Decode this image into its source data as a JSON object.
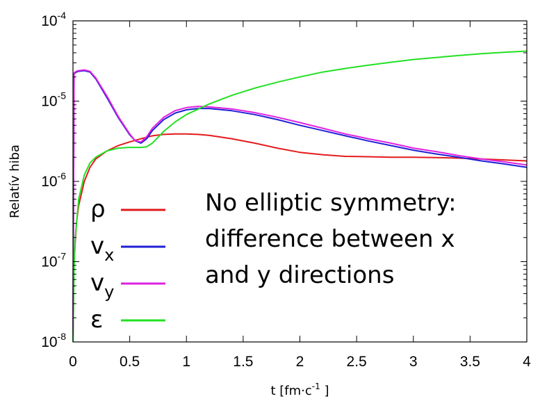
{
  "chart_data": {
    "type": "line",
    "title": "",
    "xlabel": {
      "text": "t [fm·c",
      "sup": "-1",
      "suffix": " ]"
    },
    "ylabel": "Relatív hiba",
    "xlim": [
      0,
      4
    ],
    "ylim": [
      1e-08,
      0.0001
    ],
    "yscale": "log",
    "grid": false,
    "legend_position": "left",
    "x_ticks": [
      {
        "value": 0,
        "label": "0"
      },
      {
        "value": 0.5,
        "label": "0.5"
      },
      {
        "value": 1,
        "label": "1"
      },
      {
        "value": 1.5,
        "label": "1.5"
      },
      {
        "value": 2,
        "label": "2"
      },
      {
        "value": 2.5,
        "label": "2.5"
      },
      {
        "value": 3,
        "label": "3"
      },
      {
        "value": 3.5,
        "label": "3.5"
      },
      {
        "value": 4,
        "label": "4"
      }
    ],
    "y_ticks": [
      {
        "value": 1e-08,
        "base": "10",
        "exp": "-8"
      },
      {
        "value": 1e-07,
        "base": "10",
        "exp": "-7"
      },
      {
        "value": 1e-06,
        "base": "10",
        "exp": "-6"
      },
      {
        "value": 1e-05,
        "base": "10",
        "exp": "-5"
      },
      {
        "value": 0.0001,
        "base": "10",
        "exp": "-4"
      }
    ],
    "annotation": [
      "No elliptic symmetry:",
      "difference between x",
      "and y directions"
    ],
    "series": [
      {
        "key": "rho",
        "legend": {
          "main": "ρ",
          "sub": ""
        },
        "color": "#e31a1c",
        "x": [
          0,
          0.01,
          0.03,
          0.05,
          0.1,
          0.15,
          0.2,
          0.3,
          0.4,
          0.5,
          0.6,
          0.7,
          0.8,
          0.9,
          1.0,
          1.1,
          1.2,
          1.4,
          1.6,
          1.8,
          2.0,
          2.2,
          2.4,
          2.6,
          2.8,
          3.0,
          3.2,
          3.4,
          3.6,
          3.8,
          4.0
        ],
        "y": [
          1e-08,
          1e-07,
          3e-07,
          5e-07,
          1e-06,
          1.5e-06,
          1.9e-06,
          2.4e-06,
          2.8e-06,
          3.1e-06,
          3.4e-06,
          3.7e-06,
          3.85e-06,
          3.9e-06,
          3.9e-06,
          3.85e-06,
          3.75e-06,
          3.4e-06,
          3e-06,
          2.6e-06,
          2.3e-06,
          2.15e-06,
          2.05e-06,
          2.03e-06,
          2e-06,
          2e-06,
          1.98e-06,
          1.95e-06,
          1.9e-06,
          1.85e-06,
          1.8e-06
        ]
      },
      {
        "key": "vx",
        "legend": {
          "main": "v",
          "sub": "x"
        },
        "color": "#1f1fd6",
        "x": [
          0,
          0.01,
          0.03,
          0.05,
          0.1,
          0.15,
          0.2,
          0.3,
          0.4,
          0.5,
          0.55,
          0.6,
          0.65,
          0.7,
          0.8,
          0.9,
          1.0,
          1.1,
          1.2,
          1.4,
          1.6,
          1.8,
          2.0,
          2.2,
          2.4,
          2.6,
          2.8,
          3.0,
          3.2,
          3.4,
          3.6,
          3.8,
          4.0
        ],
        "y": [
          1e-08,
          2.2e-05,
          2.3e-05,
          2.35e-05,
          2.4e-05,
          2.3e-05,
          1.9e-05,
          1.1e-05,
          6.2e-06,
          3.8e-06,
          3.2e-06,
          3e-06,
          3.4e-06,
          4.3e-06,
          5.9e-06,
          7.1e-06,
          7.8e-06,
          8.1e-06,
          8.1e-06,
          7.6e-06,
          6.8e-06,
          5.9e-06,
          5e-06,
          4.3e-06,
          3.7e-06,
          3.2e-06,
          2.8e-06,
          2.45e-06,
          2.2e-06,
          2e-06,
          1.8e-06,
          1.65e-06,
          1.5e-06
        ]
      },
      {
        "key": "vy",
        "legend": {
          "main": "v",
          "sub": "y"
        },
        "color": "#e020e0",
        "x": [
          0,
          0.01,
          0.03,
          0.05,
          0.1,
          0.15,
          0.2,
          0.3,
          0.4,
          0.5,
          0.55,
          0.6,
          0.65,
          0.7,
          0.8,
          0.9,
          1.0,
          1.1,
          1.2,
          1.4,
          1.6,
          1.8,
          2.0,
          2.2,
          2.4,
          2.6,
          2.8,
          3.0,
          3.2,
          3.4,
          3.6,
          3.8,
          4.0
        ],
        "y": [
          1e-08,
          2.25e-05,
          2.35e-05,
          2.4e-05,
          2.45e-05,
          2.35e-05,
          1.95e-05,
          1.15e-05,
          6.4e-06,
          3.9e-06,
          3.2e-06,
          3.1e-06,
          3.6e-06,
          4.6e-06,
          6.3e-06,
          7.6e-06,
          8.3e-06,
          8.6e-06,
          8.5e-06,
          8e-06,
          7.2e-06,
          6.3e-06,
          5.4e-06,
          4.6e-06,
          3.9e-06,
          3.4e-06,
          3e-06,
          2.6e-06,
          2.35e-06,
          2.1e-06,
          1.9e-06,
          1.75e-06,
          1.6e-06
        ]
      },
      {
        "key": "eps",
        "legend": {
          "main": "ε",
          "sub": ""
        },
        "color": "#22e022",
        "x": [
          0,
          0.01,
          0.02,
          0.05,
          0.1,
          0.15,
          0.2,
          0.3,
          0.4,
          0.5,
          0.6,
          0.65,
          0.7,
          0.8,
          0.9,
          1.0,
          1.2,
          1.4,
          1.6,
          1.8,
          2.0,
          2.2,
          2.4,
          2.6,
          2.8,
          3.0,
          3.2,
          3.4,
          3.6,
          3.8,
          4.0
        ],
        "y": [
          1e-08,
          8e-08,
          2e-07,
          6e-07,
          1.2e-06,
          1.7e-06,
          2e-06,
          2.4e-06,
          2.6e-06,
          2.65e-06,
          2.65e-06,
          2.7e-06,
          3e-06,
          4.2e-06,
          5.5e-06,
          6.8e-06,
          9.2e-06,
          1.18e-05,
          1.45e-05,
          1.72e-05,
          2e-05,
          2.3e-05,
          2.55e-05,
          2.8e-05,
          3.05e-05,
          3.3e-05,
          3.5e-05,
          3.7e-05,
          3.9e-05,
          4.05e-05,
          4.2e-05
        ]
      }
    ]
  }
}
